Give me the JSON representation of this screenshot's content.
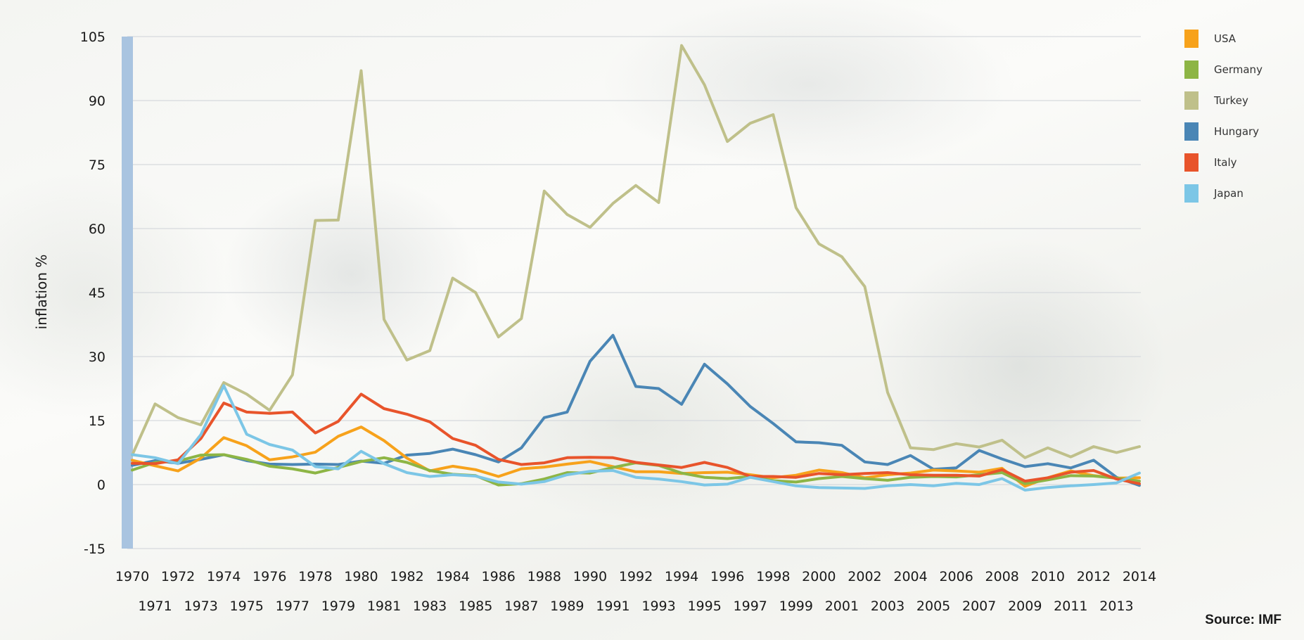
{
  "chart_data": {
    "type": "line",
    "title": "",
    "xlabel": "",
    "ylabel": "inflation %",
    "source": "Source: IMF",
    "ylim": [
      -15,
      105
    ],
    "yticks": [
      -15,
      0,
      15,
      30,
      45,
      60,
      75,
      90,
      105
    ],
    "grid": true,
    "legend_position": "top-right",
    "x": [
      1970,
      1971,
      1972,
      1973,
      1974,
      1975,
      1976,
      1977,
      1978,
      1979,
      1980,
      1981,
      1982,
      1983,
      1984,
      1985,
      1986,
      1987,
      1988,
      1989,
      1990,
      1991,
      1992,
      1993,
      1994,
      1995,
      1996,
      1997,
      1998,
      1999,
      2000,
      2001,
      2002,
      2003,
      2004,
      2005,
      2006,
      2007,
      2008,
      2009,
      2010,
      2011,
      2012,
      2013,
      2014
    ],
    "series": [
      {
        "name": "USA",
        "color": "#f7a21b",
        "values": [
          5.7,
          4.4,
          3.2,
          6.2,
          11.0,
          9.1,
          5.8,
          6.5,
          7.6,
          11.3,
          13.5,
          10.3,
          6.2,
          3.2,
          4.3,
          3.5,
          1.9,
          3.7,
          4.1,
          4.8,
          5.4,
          4.2,
          3.0,
          3.0,
          2.6,
          2.8,
          2.9,
          2.3,
          1.6,
          2.2,
          3.4,
          2.8,
          1.6,
          2.3,
          2.7,
          3.4,
          3.2,
          2.9,
          3.8,
          -0.4,
          1.6,
          3.2,
          2.1,
          1.5,
          1.6
        ]
      },
      {
        "name": "Germany",
        "color": "#8db545",
        "values": [
          3.4,
          5.2,
          5.5,
          6.9,
          7.0,
          5.9,
          4.3,
          3.7,
          2.7,
          4.0,
          5.4,
          6.3,
          5.2,
          3.3,
          2.4,
          2.1,
          -0.1,
          0.2,
          1.3,
          2.8,
          2.7,
          4.0,
          5.1,
          4.5,
          2.7,
          1.7,
          1.4,
          1.9,
          0.9,
          0.6,
          1.4,
          1.9,
          1.4,
          1.0,
          1.7,
          1.9,
          1.8,
          2.3,
          2.8,
          0.2,
          1.1,
          2.1,
          2.0,
          1.5,
          0.8
        ]
      },
      {
        "name": "Turkey",
        "color": "#bfc08a",
        "values": [
          6.9,
          18.9,
          15.7,
          14.0,
          23.9,
          21.2,
          17.4,
          25.7,
          61.9,
          62.0,
          97.0,
          38.7,
          29.2,
          31.4,
          48.4,
          45.0,
          34.6,
          38.9,
          68.8,
          63.3,
          60.3,
          65.9,
          70.1,
          66.1,
          102.9,
          93.7,
          80.4,
          84.7,
          86.7,
          64.9,
          56.4,
          53.4,
          46.4,
          21.6,
          8.6,
          8.2,
          9.6,
          8.8,
          10.4,
          6.3,
          8.6,
          6.5,
          8.9,
          7.5,
          8.9
        ]
      },
      {
        "name": "Hungary",
        "color": "#4a86b5",
        "values": [
          4.5,
          5.6,
          5.0,
          5.9,
          7.0,
          5.6,
          4.8,
          4.7,
          4.8,
          4.7,
          5.5,
          5.0,
          6.9,
          7.3,
          8.3,
          7.0,
          5.3,
          8.6,
          15.7,
          17.0,
          28.9,
          35.0,
          23.0,
          22.5,
          18.8,
          28.2,
          23.6,
          18.3,
          14.3,
          10.0,
          9.8,
          9.2,
          5.3,
          4.7,
          6.8,
          3.6,
          3.9,
          8.0,
          6.0,
          4.2,
          4.9,
          3.9,
          5.7,
          1.7,
          -0.2
        ]
      },
      {
        "name": "Italy",
        "color": "#e8542b",
        "values": [
          5.0,
          4.9,
          5.8,
          10.8,
          19.1,
          17.0,
          16.7,
          17.0,
          12.1,
          14.8,
          21.2,
          17.8,
          16.5,
          14.7,
          10.8,
          9.2,
          5.9,
          4.7,
          5.1,
          6.3,
          6.4,
          6.3,
          5.2,
          4.6,
          4.0,
          5.2,
          4.0,
          1.9,
          1.9,
          1.7,
          2.6,
          2.3,
          2.6,
          2.8,
          2.3,
          2.2,
          2.2,
          2.0,
          3.5,
          0.8,
          1.6,
          2.9,
          3.3,
          1.3,
          0.2
        ]
      },
      {
        "name": "Japan",
        "color": "#7cc6e6",
        "values": [
          7.0,
          6.3,
          4.9,
          11.7,
          23.2,
          11.8,
          9.4,
          8.1,
          4.2,
          3.7,
          7.8,
          4.9,
          2.8,
          1.9,
          2.3,
          2.0,
          0.6,
          0.1,
          0.7,
          2.3,
          3.1,
          3.3,
          1.7,
          1.3,
          0.7,
          -0.1,
          0.1,
          1.7,
          0.7,
          -0.3,
          -0.7,
          -0.8,
          -0.9,
          -0.3,
          0.0,
          -0.3,
          0.3,
          0.0,
          1.4,
          -1.3,
          -0.7,
          -0.3,
          0.0,
          0.4,
          2.7
        ]
      }
    ]
  }
}
